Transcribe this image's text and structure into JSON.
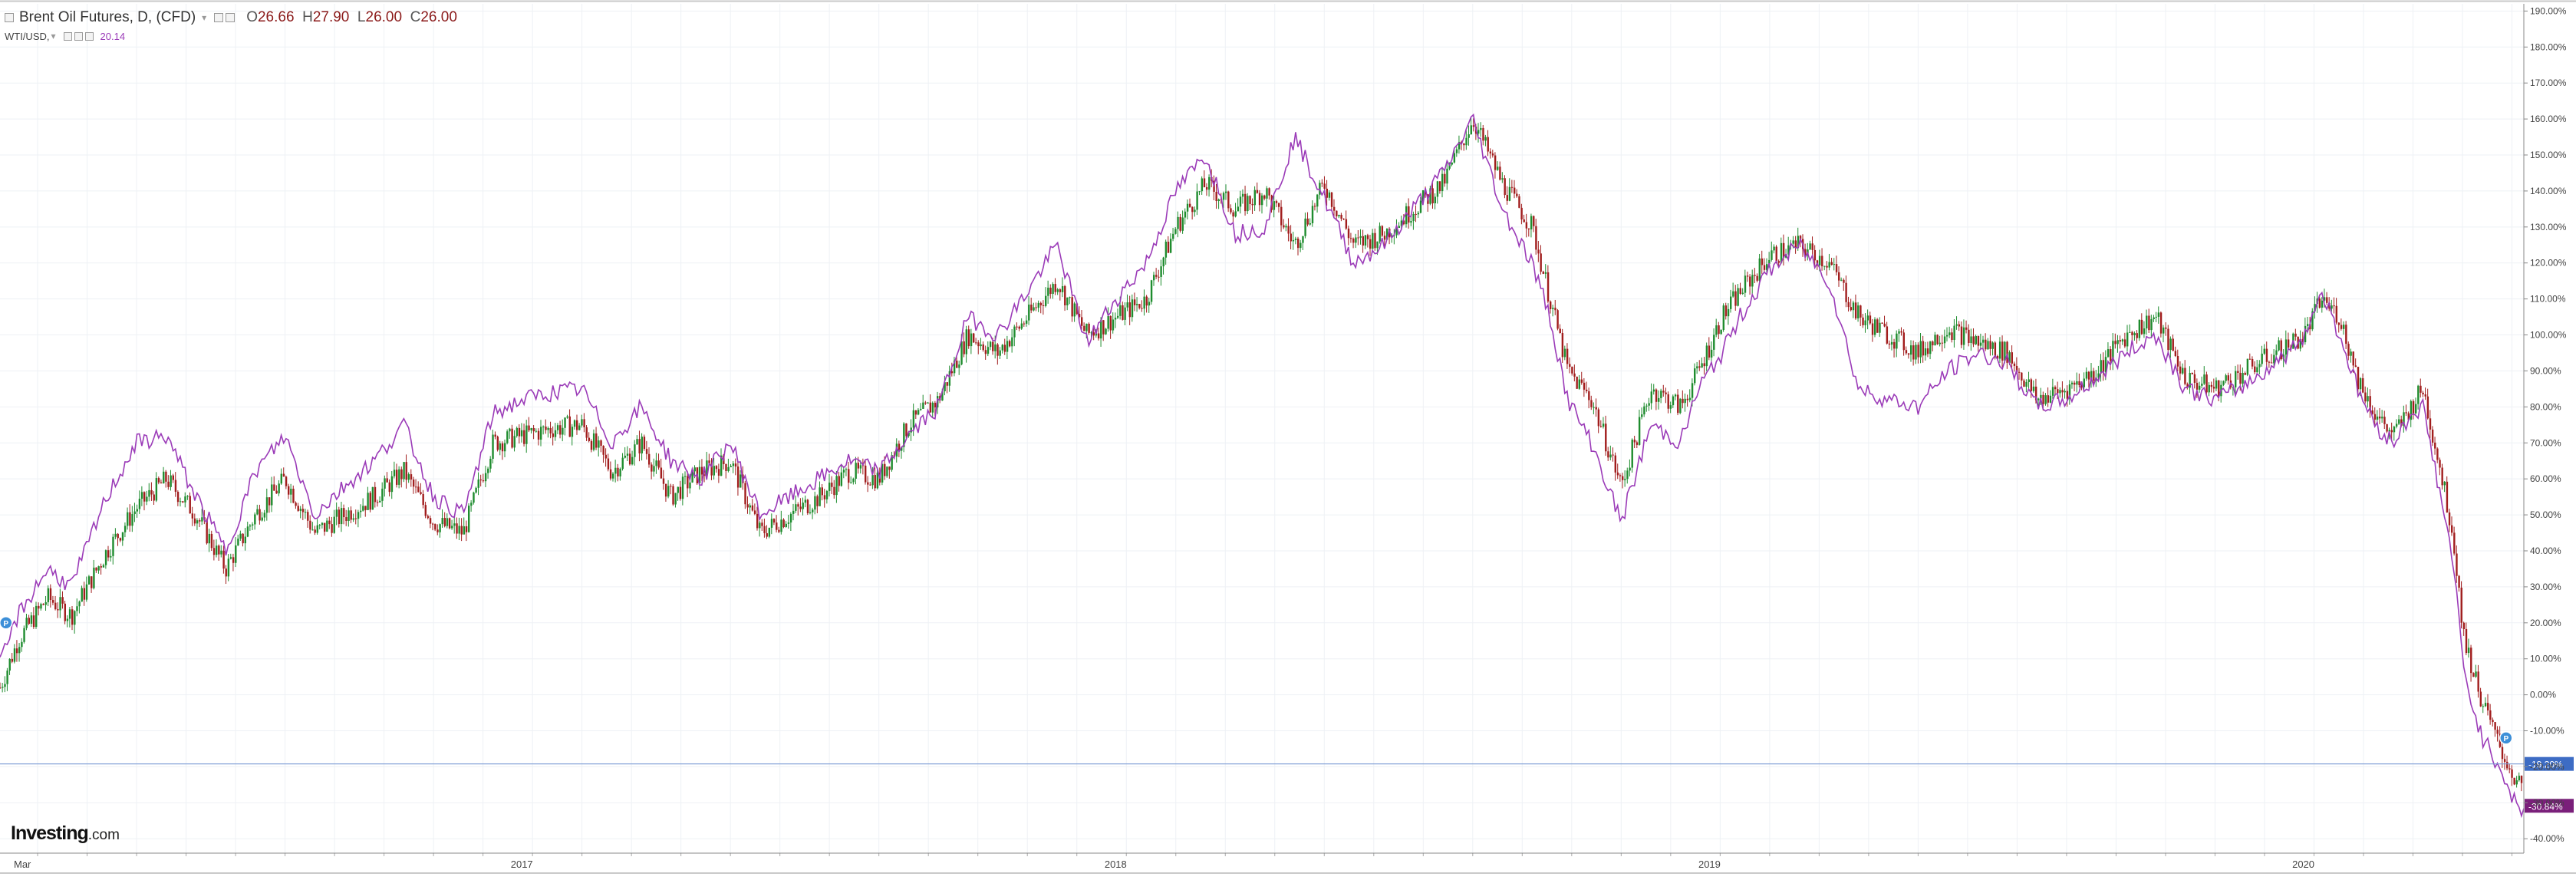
{
  "header": {
    "main_symbol": "Brent Oil Futures, D, (CFD)",
    "open_label": "O",
    "open": "26.66",
    "high_label": "H",
    "high": "27.90",
    "low_label": "L",
    "low": "26.00",
    "close_label": "C",
    "close": "26.00",
    "compare_symbol": "WTI/USD,",
    "compare_value": "20.14"
  },
  "logo": {
    "brand": "Investing",
    "suffix": ".com"
  },
  "colors": {
    "up": "#1e8c2e",
    "down": "#a11d1d",
    "compare_line": "#9b3bb8",
    "crosshair": "#7b9bd6",
    "grid": "#eef1f5",
    "marker": "#3d8fd8"
  },
  "price_labels": {
    "crosshair_value": -19.2,
    "crosshair_text": "-19.20%",
    "last_value": -30.84,
    "last_text": "-30.84%"
  },
  "markers": [
    {
      "label": "P",
      "x": 2016.03,
      "y": 20
    },
    {
      "label": "P",
      "x": 2020.24,
      "y": -12
    }
  ],
  "chart_data": {
    "type": "line",
    "subtype": "candlestick-with-comparison",
    "title": "",
    "xlabel": "",
    "ylabel": "",
    "x_range": [
      2016.02,
      2020.27
    ],
    "ylim": [
      -44,
      192
    ],
    "grid": true,
    "y_scale": "percent",
    "y_ticks": [
      190,
      180,
      170,
      160,
      150,
      140,
      130,
      120,
      110,
      100,
      90,
      80,
      70,
      60,
      50,
      40,
      30,
      20,
      10,
      0,
      -10,
      -20,
      -30,
      -40
    ],
    "y_tick_labels": [
      "190.00%",
      "180.00%",
      "170.00%",
      "160.00%",
      "150.00%",
      "140.00%",
      "130.00%",
      "120.00%",
      "110.00%",
      "100.00%",
      "90.00%",
      "80.00%",
      "70.00%",
      "60.00%",
      "50.00%",
      "40.00%",
      "30.00%",
      "20.00%",
      "10.00%",
      "0.00%",
      "-10.00%",
      "-20.00%",
      "-30.00%",
      "-40.00%"
    ],
    "x_tick_labels": [
      {
        "label": "Mar",
        "x": 2016.02
      },
      {
        "label": "2017",
        "x": 2016.88
      },
      {
        "label": "2018",
        "x": 2017.88
      },
      {
        "label": "2019",
        "x": 2018.88
      },
      {
        "label": "2020",
        "x": 2019.88
      }
    ],
    "series": [
      {
        "name": "Brent Oil Futures",
        "style": "candlestick",
        "x": [
          2016.02,
          2016.05,
          2016.1,
          2016.14,
          2016.2,
          2016.25,
          2016.3,
          2016.35,
          2016.4,
          2016.45,
          2016.5,
          2016.55,
          2016.6,
          2016.65,
          2016.7,
          2016.75,
          2016.8,
          2016.85,
          2016.9,
          2016.95,
          2017.0,
          2017.05,
          2017.1,
          2017.15,
          2017.2,
          2017.25,
          2017.3,
          2017.35,
          2017.4,
          2017.45,
          2017.5,
          2017.55,
          2017.6,
          2017.65,
          2017.7,
          2017.75,
          2017.8,
          2017.85,
          2017.9,
          2017.95,
          2018.0,
          2018.05,
          2018.1,
          2018.15,
          2018.2,
          2018.25,
          2018.3,
          2018.35,
          2018.4,
          2018.45,
          2018.5,
          2018.55,
          2018.6,
          2018.63,
          2018.66,
          2018.7,
          2018.75,
          2018.8,
          2018.85,
          2018.88,
          2018.92,
          2018.95,
          2019.0,
          2019.05,
          2019.1,
          2019.15,
          2019.2,
          2019.25,
          2019.3,
          2019.35,
          2019.4,
          2019.45,
          2019.5,
          2019.55,
          2019.6,
          2019.65,
          2019.7,
          2019.75,
          2019.8,
          2019.85,
          2019.88,
          2019.9,
          2019.93,
          2019.96,
          2019.99,
          2020.02,
          2020.05,
          2020.08,
          2020.1,
          2020.13,
          2020.15,
          2020.17,
          2020.2,
          2020.23,
          2020.26
        ],
        "values": [
          2,
          15,
          27,
          22,
          40,
          52,
          60,
          50,
          35,
          50,
          60,
          45,
          50,
          55,
          62,
          48,
          45,
          70,
          72,
          74,
          75,
          62,
          70,
          55,
          62,
          65,
          45,
          50,
          55,
          62,
          60,
          75,
          82,
          100,
          95,
          105,
          115,
          100,
          105,
          110,
          130,
          142,
          135,
          140,
          125,
          142,
          125,
          128,
          135,
          142,
          160,
          142,
          130,
          110,
          90,
          82,
          58,
          85,
          80,
          90,
          105,
          112,
          122,
          125,
          120,
          105,
          100,
          95,
          102,
          98,
          95,
          82,
          85,
          90,
          100,
          105,
          88,
          85,
          90,
          95,
          98,
          100,
          110,
          105,
          88,
          78,
          72,
          80,
          85,
          62,
          45,
          15,
          -2,
          -15,
          -25
        ]
      },
      {
        "name": "WTI/USD",
        "style": "line",
        "x": [
          2016.02,
          2016.05,
          2016.1,
          2016.14,
          2016.2,
          2016.25,
          2016.3,
          2016.35,
          2016.4,
          2016.45,
          2016.5,
          2016.55,
          2016.6,
          2016.65,
          2016.7,
          2016.75,
          2016.8,
          2016.85,
          2016.9,
          2016.95,
          2017.0,
          2017.05,
          2017.1,
          2017.15,
          2017.2,
          2017.25,
          2017.3,
          2017.35,
          2017.4,
          2017.45,
          2017.5,
          2017.55,
          2017.6,
          2017.65,
          2017.7,
          2017.75,
          2017.8,
          2017.85,
          2017.9,
          2017.95,
          2018.0,
          2018.05,
          2018.1,
          2018.15,
          2018.2,
          2018.25,
          2018.3,
          2018.35,
          2018.4,
          2018.45,
          2018.5,
          2018.55,
          2018.6,
          2018.63,
          2018.66,
          2018.7,
          2018.75,
          2018.8,
          2018.85,
          2018.88,
          2018.92,
          2018.95,
          2019.0,
          2019.05,
          2019.1,
          2019.15,
          2019.2,
          2019.25,
          2019.3,
          2019.35,
          2019.4,
          2019.45,
          2019.5,
          2019.55,
          2019.6,
          2019.65,
          2019.7,
          2019.75,
          2019.8,
          2019.85,
          2019.88,
          2019.9,
          2019.93,
          2019.96,
          2019.99,
          2020.02,
          2020.05,
          2020.08,
          2020.1,
          2020.13,
          2020.15,
          2020.17,
          2020.2,
          2020.23,
          2020.26
        ],
        "values": [
          8,
          22,
          35,
          30,
          55,
          70,
          72,
          55,
          40,
          62,
          72,
          50,
          58,
          65,
          75,
          55,
          50,
          78,
          82,
          84,
          85,
          70,
          80,
          65,
          60,
          70,
          50,
          55,
          60,
          65,
          62,
          72,
          80,
          105,
          100,
          112,
          125,
          98,
          110,
          120,
          140,
          150,
          128,
          130,
          155,
          138,
          120,
          125,
          135,
          145,
          160,
          135,
          120,
          105,
          82,
          70,
          48,
          75,
          70,
          85,
          95,
          105,
          118,
          125,
          115,
          85,
          82,
          80,
          90,
          95,
          92,
          80,
          82,
          88,
          95,
          100,
          85,
          82,
          86,
          92,
          96,
          100,
          112,
          100,
          85,
          75,
          70,
          78,
          80,
          55,
          38,
          5,
          -12,
          -20,
          -32
        ]
      }
    ]
  }
}
